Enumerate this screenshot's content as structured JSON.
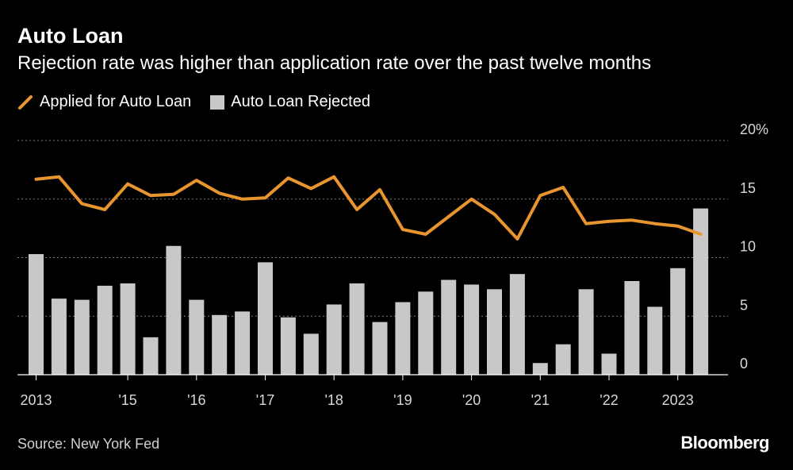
{
  "header": {
    "title": "Auto Loan",
    "subtitle": "Rejection rate was higher than application rate over the past twelve months"
  },
  "footer": {
    "source": "Source: New York Fed",
    "brand": "Bloomberg"
  },
  "colors": {
    "line": "#e8952f",
    "bar": "#c8c8c8",
    "grid": "#7a7a7a",
    "axis": "#ffffff"
  },
  "chart_data": {
    "type": "bar",
    "title": "Auto Loan",
    "subtitle": "Rejection rate was higher than application rate over the past twelve months",
    "xlabel": "",
    "ylabel": "",
    "ylim": [
      0,
      20
    ],
    "yticks": [
      0,
      5,
      10,
      15,
      20
    ],
    "ytick_labels": [
      "0",
      "5",
      "10",
      "15",
      "20%"
    ],
    "xtick_labels": [
      "2013",
      "'15",
      "'16",
      "'17",
      "'18",
      "'19",
      "'20",
      "'21",
      "'22",
      "2023"
    ],
    "xtick_positions": [
      0,
      4,
      7,
      10,
      13,
      16,
      19,
      22,
      25,
      28
    ],
    "legend": [
      "Applied for Auto Loan",
      "Auto Loan Rejected"
    ],
    "series": [
      {
        "name": "Applied for Auto Loan",
        "type": "line",
        "values": [
          16.7,
          16.9,
          14.6,
          14.1,
          16.3,
          15.3,
          15.4,
          16.6,
          15.5,
          15.0,
          15.1,
          16.8,
          15.9,
          16.9,
          14.1,
          15.8,
          12.4,
          12.0,
          13.5,
          15.0,
          13.7,
          11.6,
          15.3,
          16.0,
          12.9,
          13.1,
          13.2,
          12.9,
          12.7,
          12.0
        ]
      },
      {
        "name": "Auto Loan Rejected",
        "type": "bar",
        "values": [
          10.3,
          6.5,
          6.4,
          7.6,
          7.8,
          3.2,
          11.0,
          6.4,
          5.1,
          5.4,
          9.6,
          4.9,
          3.5,
          6.0,
          7.8,
          4.5,
          6.2,
          7.1,
          8.1,
          7.7,
          7.3,
          8.6,
          1.0,
          2.6,
          7.3,
          1.8,
          8.0,
          5.8,
          9.1,
          14.2
        ]
      }
    ]
  }
}
